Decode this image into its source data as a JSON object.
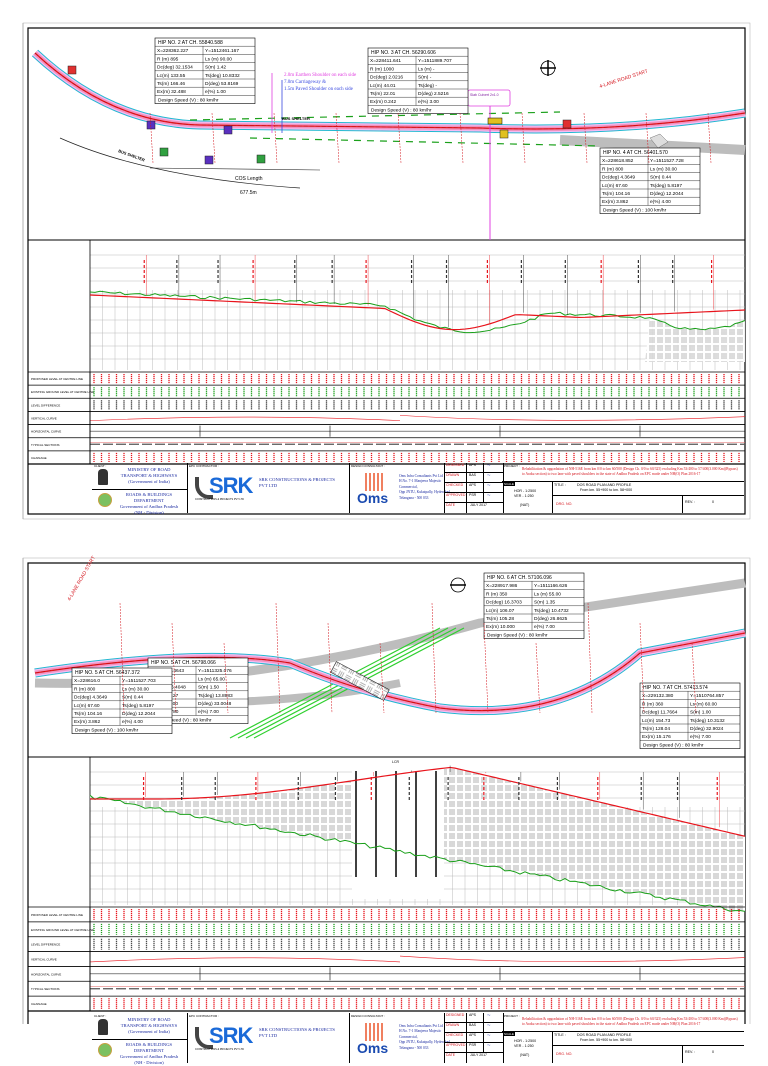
{
  "sheets": [
    {
      "hip_tables": [
        {
          "title": "HIP NO. 2 AT CH. 55840.588",
          "rows": [
            [
              "X=228362.227",
              "Y=1512461.167"
            ],
            [
              "R (m)  895",
              "Ls (m)  90.00"
            ],
            [
              "Dc(deg) 32.1534",
              "S(m)  1.42"
            ],
            [
              "Lc(m)  133.55",
              "Ts(deg) 10.8332"
            ],
            [
              "Ts(m)  166.46",
              "D(deg) 53.8169"
            ],
            [
              "Ex(m)  32.488",
              "e(%)  1.00"
            ]
          ],
          "speed": "Design Speed (V) : 80 km/hr"
        },
        {
          "title": "HIP NO. 3 AT CH. 56290.606",
          "rows": [
            [
              "X=228411.641",
              "Y=1511889.707"
            ],
            [
              "R (m)  1000",
              "Ls (m)  -"
            ],
            [
              "Dc(deg) 2.0216",
              "S(m)  -"
            ],
            [
              "Lc(m)  44.01",
              "Ts(deg)  -"
            ],
            [
              "Ts(m)  22.01",
              "D(deg) 2.5216"
            ],
            [
              "Ex(m)  0.242",
              "e(%)  3.00"
            ]
          ],
          "speed": "Design Speed (V) : 80 km/hr"
        },
        {
          "title": "HIP NO. 4 AT CH. 56401.570",
          "rows": [
            [
              "X=228618.852",
              "Y=1511527.728"
            ],
            [
              "R (m)  800",
              "Ls (m)  30.00"
            ],
            [
              "Dc(deg) 4.3649",
              "S(m)  0.44"
            ],
            [
              "Lc(m)  67.60",
              "Ts(deg) 5.8197"
            ],
            [
              "Ts(m)  104.16",
              "D(deg) 12.2044"
            ],
            [
              "Ex(m)  3.862",
              "e(%)  4.00"
            ]
          ],
          "speed": "Design Speed (V) : 100 km/hr"
        }
      ],
      "annotations": {
        "shoulder_earthen": "2.0m Earthen Shoulder on each side",
        "carriageway": "7.0m Carriageway &",
        "shoulder_paved": "1.5m Paved Shoulder on each side",
        "bus_shelter": "BUS SHELTER",
        "bus_shelter_left": "BUS SHELTER",
        "cos_length": "COS Length",
        "cos_value": "677.5m",
        "culvert": "Slab Culvert 2x1.0",
        "road_start": "4-LANE ROAD START"
      }
    },
    {
      "hip_tables": [
        {
          "title": "HIP NO. 6 AT CH. 57106.096",
          "rows": [
            [
              "X=228917.986",
              "Y=1511166.626"
            ],
            [
              "R (m)  350",
              "Ls (m)  55.00"
            ],
            [
              "Dc(deg) 16.3703",
              "S(m)  1.35"
            ],
            [
              "Lc(m)  106.07",
              "Ts(deg) 10.4732"
            ],
            [
              "Ts(m)  105.28",
              "D(deg) 26.8625"
            ],
            [
              "Ex(m)  10.000",
              "e(%)  7.00"
            ]
          ],
          "speed": "Design Speed (V) : 80 km/hr"
        },
        {
          "title": "HIP NO. 5 AT CH. 56798.066",
          "rows": [
            [
              "X=228663.4643",
              "Y=1511325.076"
            ],
            [
              "R (m)  250",
              "Ls (m)  65.00"
            ],
            [
              "Dc(deg) 16.4048",
              "S(m)  1.50"
            ],
            [
              "Lc(m)  166.27",
              "Ts(deg) 13.8983"
            ],
            [
              "Ts(m)  139.00",
              "D(deg) 33.0048"
            ],
            [
              "Ex(m)  11.780",
              "e(%)  7.00"
            ]
          ],
          "speed": "Design Speed (V) : 80 km/hr"
        },
        {
          "title": "HIP NO. 7 AT CH. 57413.574",
          "rows": [
            [
              "X=229132.380",
              "Y=1510764.857"
            ],
            [
              "R (m)  360",
              "Ls (m)  60.00"
            ],
            [
              "Dc(deg) 11.7664",
              "S(m)  1.00"
            ],
            [
              "Lc(m)  154.73",
              "Ts(deg) 10.3132"
            ],
            [
              "Ts(m)  128.04",
              "D(deg) 32.9024"
            ],
            [
              "Ex(m)  15.176",
              "e(%)  7.00"
            ]
          ],
          "speed": "Design Speed (V) : 80 km/hr"
        },
        {
          "title": "HIP NO. 5 AT CH. 56437.372",
          "rows": [
            [
              "X=228616.0",
              "Y=1511527.703"
            ],
            [
              "R (m)  800",
              "Ls (m)  30.00"
            ],
            [
              "Dc(deg) 4.3649",
              "S(m)  0.44"
            ],
            [
              "Lc(m)  67.60",
              "Ts(deg) 5.8197"
            ],
            [
              "Ts(m)  104.16",
              "D(deg) 12.2044"
            ],
            [
              "Ex(m)  3.862",
              "e(%)  4.00"
            ]
          ],
          "speed": "Design Speed (V) : 100 km/hr"
        }
      ],
      "annotations": {
        "road_start": "4-LANE ROAD START",
        "bridge_length": "LCR"
      }
    }
  ],
  "band_labels": [
    "PROPOSED LEVEL AT CENTRE LINE",
    "EXISTING GROUND LEVEL AT CENTRE LINE",
    "LEVEL DIFFERENCE",
    "VERTICAL CURVE",
    "HORIZONTAL CURVE",
    "TYPICAL SECTIONS",
    "CHAINAGE"
  ],
  "title_block": {
    "client_label": "CLIENT :",
    "contractor_label": "EPC CONTRACTOR :",
    "consultant_label": "DESIGN CONSULTANT :",
    "ministry": [
      "MINISTRY OF ROAD",
      "TRANSPORT & HIGHWAYS",
      "(Government of India)"
    ],
    "department": [
      "ROADS & BUILDINGS DEPARTMENT",
      "Government of Andhra Pradesh",
      "(NH - Division)"
    ],
    "contractor_logo": "SRK",
    "contractor_logo_sub": "CONSTRUCTIONS & PROJECTS PVT LTD",
    "contractor_name": [
      "SRK CONSTRUCTIONS & PROJECTS",
      "PVT LTD"
    ],
    "consultant_logo": "Oms",
    "consultant_address": [
      "Oms Infra Consultants Pvt Ltd",
      "H.No. 7-1 Manjeera Majestic",
      "Commercial,",
      "Opp JNTU, Kukatpally, Hyderabad",
      "Telangana - 500 033"
    ],
    "signoffs": [
      {
        "role": "DESIGNED",
        "name": "APS"
      },
      {
        "role": "DRAWN",
        "name": "BAS"
      },
      {
        "role": "CHECKED",
        "name": "APS"
      },
      {
        "role": "APPROVED",
        "name": "PSR"
      },
      {
        "role": "DATE",
        "name": "JULY 2017"
      }
    ],
    "project_label": "PROJECT :",
    "project": "Rehabilitation & upgradation of NH-516E from km 0/0 to km 60/500 (Design Ch. 0/0 to 60/325) excluding Km 53/400 to 57/400(3.000 Km)(Bypass) to Araku section) to two lane with paved shoulders in the state of Andhra Pradesh on EPC mode under NH(O) Plan 2016-17",
    "scale_label": "SCALE",
    "scale_h": "HOR - 1:2500",
    "scale_v": "VER - 1:250",
    "scale_note": "(NAT)",
    "title_label": "TITLE :",
    "title": "DOS ROAD PLAN AND PROFILE",
    "title_sub": "From km. 55+900 to km. 58+000",
    "drg_label": "DRG. NO.",
    "rev_label": "REV. :",
    "rev": "0"
  },
  "colors": {
    "design": "#e8141c",
    "ground": "#1aa01a",
    "existing_road": "#bdbdbd",
    "shoulder": "#e040e0",
    "edge": "#20b8d0",
    "text_red": "#d4141c",
    "consultant_blue": "#1a3ad0"
  }
}
